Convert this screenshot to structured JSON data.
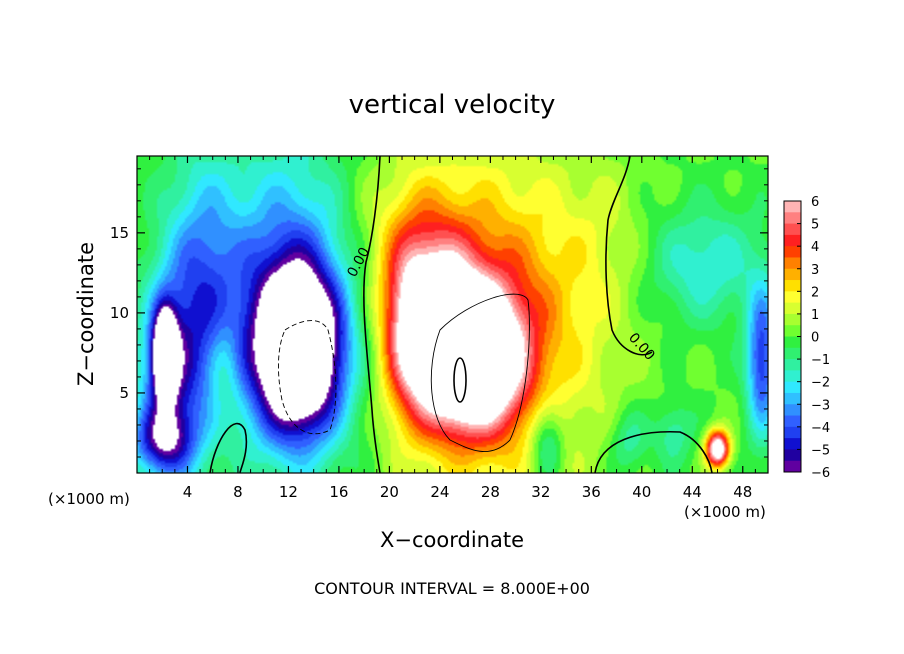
{
  "chart_data": {
    "type": "heatmap",
    "title": "vertical velocity",
    "xlabel": "X−coordinate",
    "ylabel": "Z−coordinate",
    "x_unit_left": "(×1000 m)",
    "x_unit_right": "(×1000 m)",
    "footer": "CONTOUR INTERVAL = 8.000E+00",
    "xlim": [
      0,
      50
    ],
    "ylim": [
      0,
      19.8
    ],
    "x_ticks": [
      "4",
      "8",
      "12",
      "16",
      "20",
      "24",
      "28",
      "32",
      "36",
      "40",
      "44",
      "48"
    ],
    "y_ticks": [
      "5",
      "10",
      "15"
    ],
    "colorbar": {
      "range": [
        -6,
        6
      ],
      "labels": [
        "6",
        "5",
        "4",
        "3",
        "2",
        "1",
        "0",
        "−1",
        "−2",
        "−3",
        "−4",
        "−5",
        "−6"
      ],
      "colors": [
        "#ffb4b4",
        "#ff8080",
        "#ff5050",
        "#ff2020",
        "#ff4000",
        "#ff8000",
        "#ffb000",
        "#ffe000",
        "#ffff30",
        "#d8ff30",
        "#a8ff30",
        "#70ff30",
        "#30f040",
        "#30f070",
        "#30f0a0",
        "#30f0d0",
        "#30e8ff",
        "#30c0ff",
        "#3090ff",
        "#3060ff",
        "#2040f0",
        "#1010d0",
        "#2000a0",
        "#6000a0"
      ]
    },
    "contour_labels": [
      "0.00",
      "0.00"
    ],
    "features": [
      {
        "x": 2.2,
        "z": 7.5,
        "w": 0.9,
        "h": 2.6,
        "v": -8
      },
      {
        "x": 2.5,
        "z": 5.5,
        "w": 2.5,
        "h": 6.0,
        "v": -4
      },
      {
        "x": 5.0,
        "z": 11.5,
        "w": 3.0,
        "h": 8.0,
        "v": -3.2
      },
      {
        "x": 7.0,
        "z": 6.5,
        "w": 1.2,
        "h": 3.0,
        "v": 1.2
      },
      {
        "x": 12.8,
        "z": 7.5,
        "w": 3.3,
        "h": 5.0,
        "v": -9
      },
      {
        "x": 12.0,
        "z": 11.0,
        "w": 5.5,
        "h": 9.0,
        "v": -4
      },
      {
        "x": 23.5,
        "z": 9.5,
        "w": 3.2,
        "h": 5.5,
        "v": 5.5
      },
      {
        "x": 26.8,
        "z": 7.2,
        "w": 3.6,
        "h": 4.2,
        "v": 9
      },
      {
        "x": 28.5,
        "z": 9.5,
        "w": 8.0,
        "h": 10.0,
        "v": 3.5
      },
      {
        "x": 21.5,
        "z": 9.0,
        "w": 2.0,
        "h": 5.5,
        "v": 2.5
      },
      {
        "x": 20.0,
        "z": 15.0,
        "w": 5.0,
        "h": 5.0,
        "v": 1.0
      },
      {
        "x": 32.5,
        "z": 2.0,
        "w": 1.3,
        "h": 2.5,
        "v": -2.5
      },
      {
        "x": 37.0,
        "z": 15.0,
        "w": 3.0,
        "h": 5.0,
        "v": 0.6
      },
      {
        "x": 45.0,
        "z": 13.0,
        "w": 4.5,
        "h": 3.5,
        "v": -2.0
      },
      {
        "x": 46.0,
        "z": 1.5,
        "w": 0.9,
        "h": 1.1,
        "v": 8
      },
      {
        "x": 49.5,
        "z": 7.0,
        "w": 1.2,
        "h": 4.5,
        "v": -4.5
      },
      {
        "x": 2.0,
        "z": 2.0,
        "w": 2.5,
        "h": 2.0,
        "v": -3.5
      },
      {
        "x": 39.0,
        "z": 2.0,
        "w": 1.5,
        "h": 2.0,
        "v": -1.5
      },
      {
        "x": 42.5,
        "z": 2.5,
        "w": 1.5,
        "h": 2.0,
        "v": -1.5
      }
    ]
  }
}
